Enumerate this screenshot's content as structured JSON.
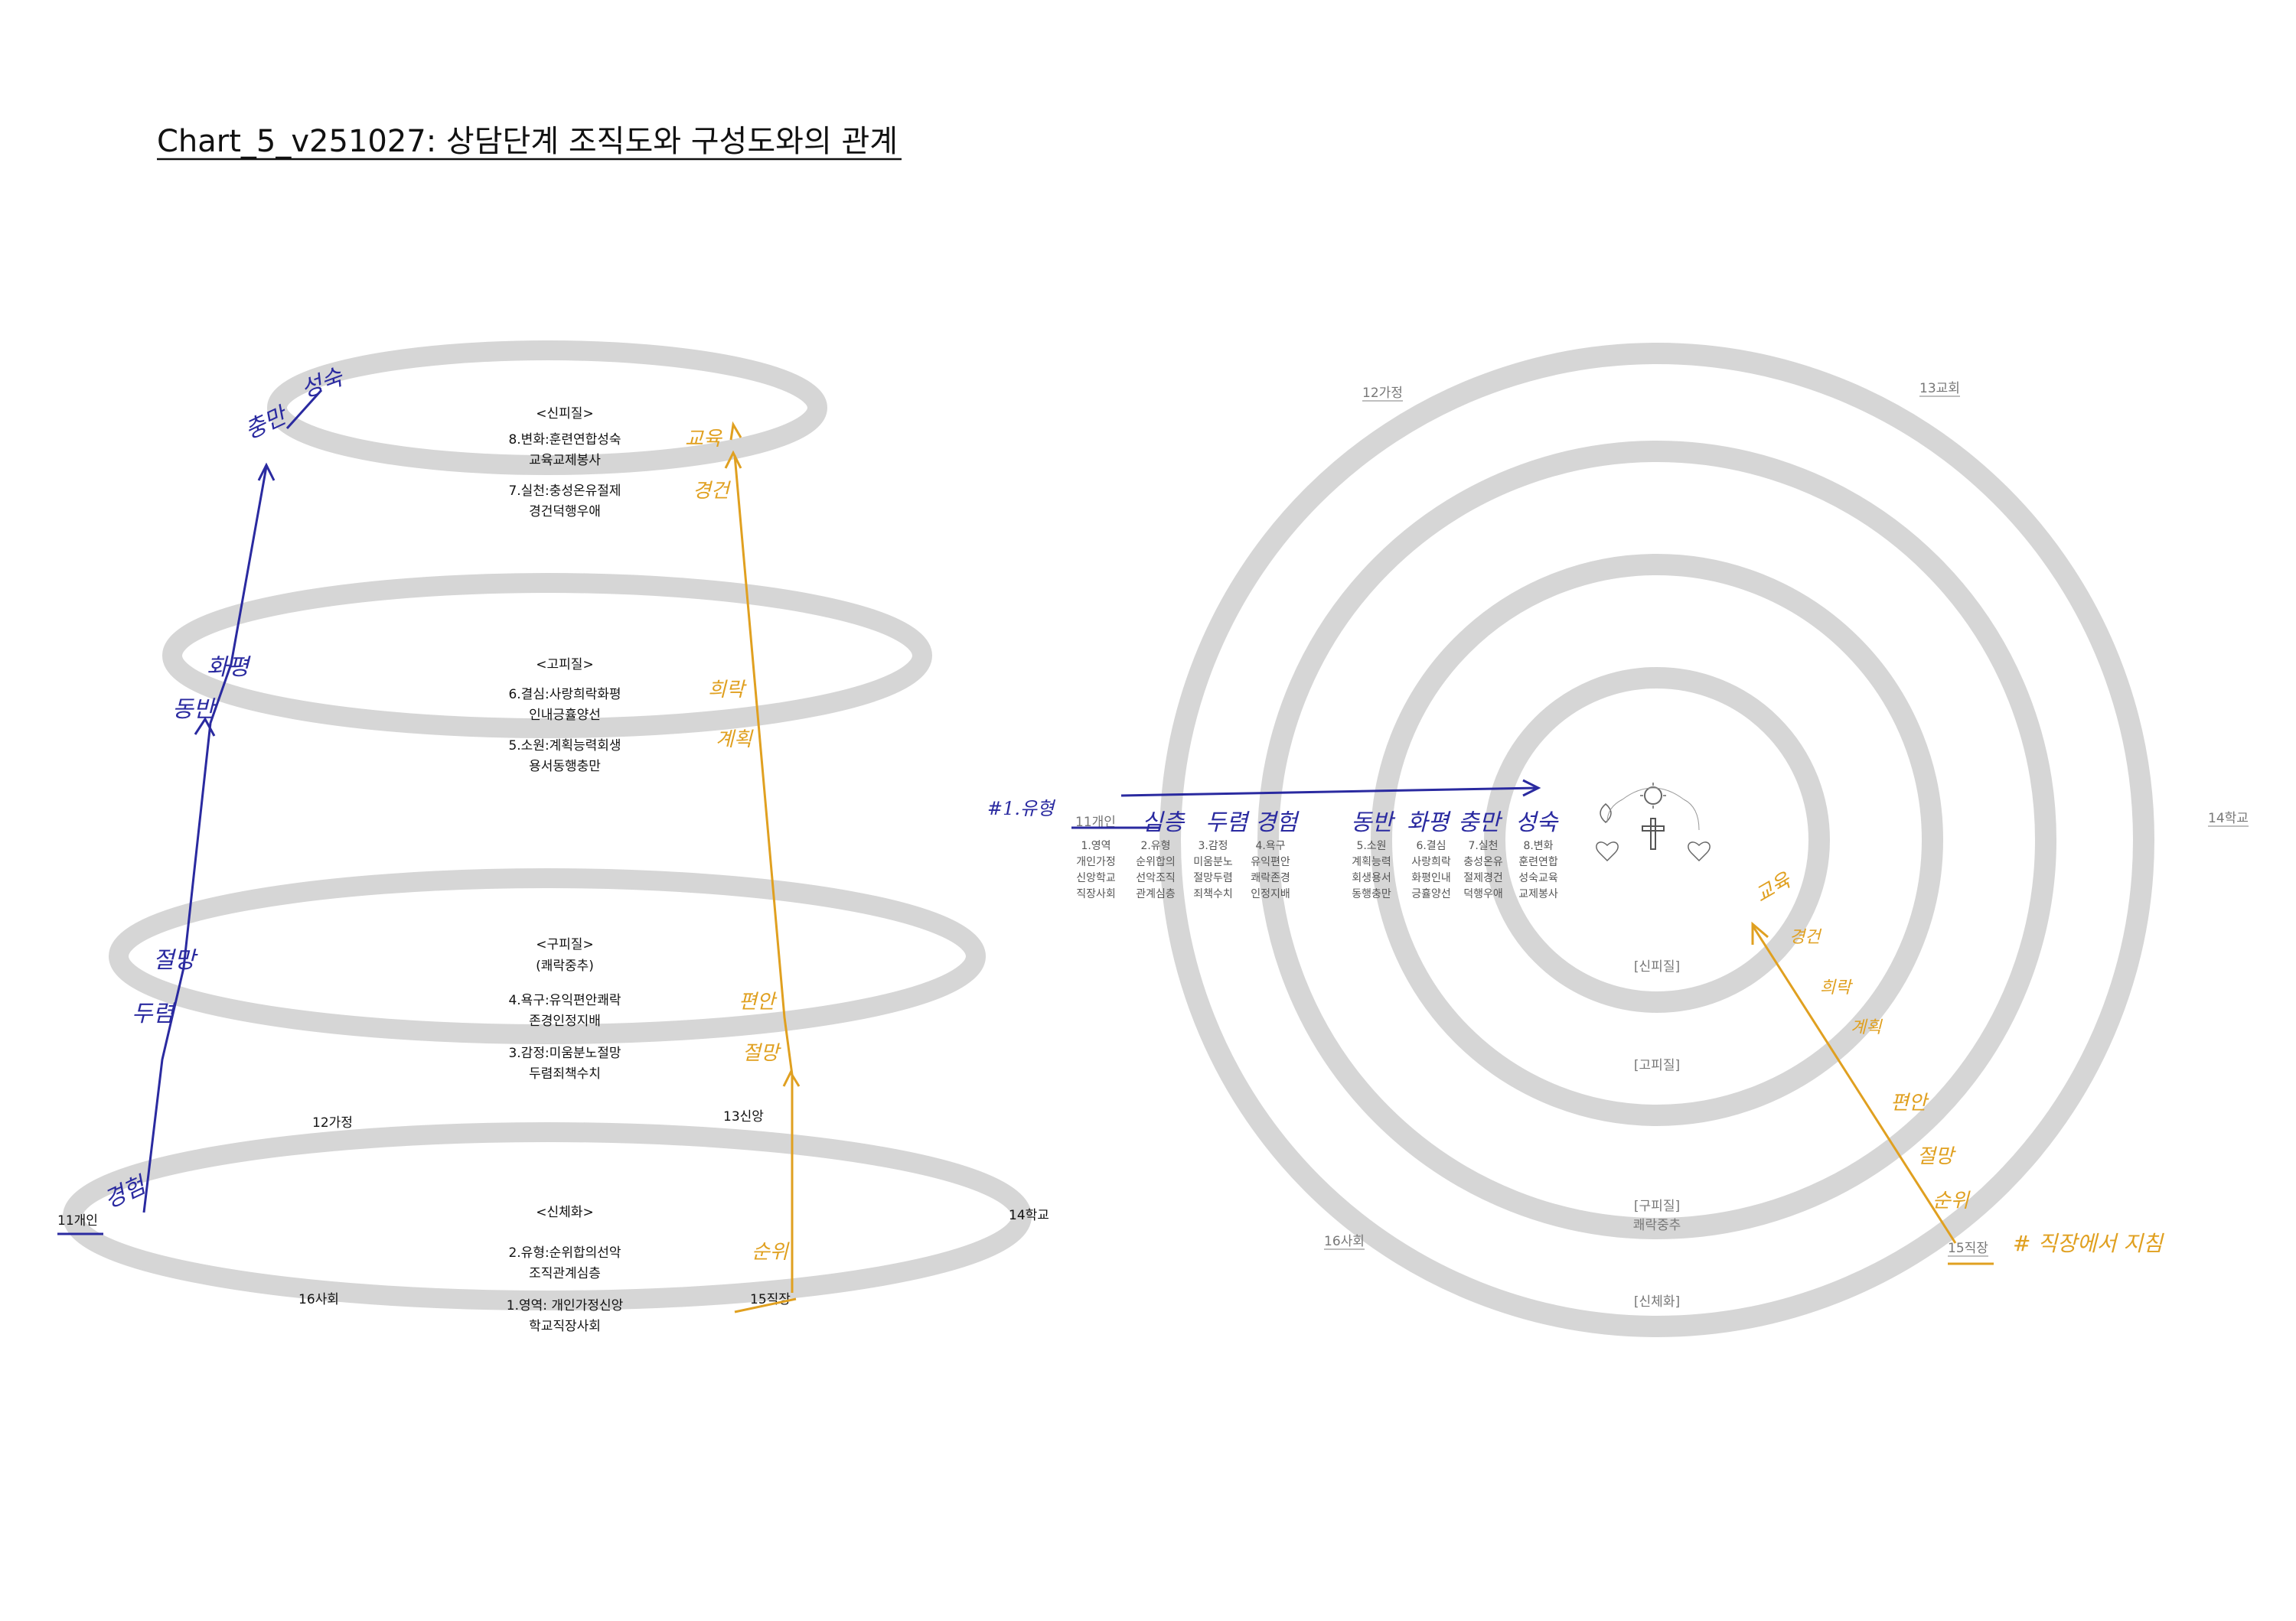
{
  "title": "Chart_5_v251027: 상담단계 조직도와 구성도와의 관계",
  "colors": {
    "ring": "#d6d6d6",
    "blue_ink": "#2a2aa0",
    "gold_ink": "#e0a020"
  },
  "left_diagram": {
    "levels": [
      {
        "header": "<신피질>",
        "lines": [
          "8.변화:훈련연합성숙",
          "교육교제봉사",
          "7.실천:충성온유절제",
          "경건덕행우애"
        ]
      },
      {
        "header": "<고피질>",
        "lines": [
          "6.결심:사랑희락화평",
          "인내긍휼양선",
          "5.소원:계획능력회생",
          "용서동행충만"
        ]
      },
      {
        "header": "<구피질>",
        "sub": "(쾌락중추)",
        "lines": [
          "4.욕구:유익편안쾌락",
          "존경인정지배",
          "3.감정:미움분노절망",
          "두렴죄책수치"
        ]
      },
      {
        "header": "<신체화>",
        "lines": [
          "2.유형:순위합의선악",
          "조직관계심층",
          "1.영역: 개인가정신앙",
          "학교직장사회"
        ]
      }
    ],
    "places": {
      "p11": "11개인",
      "p12": "12가정",
      "p13": "13신앙",
      "p14": "14학교",
      "p15": "15직장",
      "p16": "16사회"
    },
    "blue_notes": [
      "성숙",
      "충만",
      "화평",
      "동반",
      "절망",
      "두렴",
      "경험"
    ],
    "gold_notes": [
      "교육",
      "경건",
      "희락",
      "계획",
      "편안",
      "절망",
      "순위"
    ]
  },
  "right_diagram": {
    "places": {
      "p11": "11개인",
      "p12": "12가정",
      "p13": "13교회",
      "p14": "14학교",
      "p15": "15직장",
      "p16": "16사회"
    },
    "ring_labels": {
      "r1": "[신피질]",
      "r2": "[고피질]",
      "r3": "[구피질]",
      "r3_sub": "쾌락중추",
      "r4": "[신체화]"
    },
    "columns": [
      {
        "lines": [
          "1.영역",
          "개인가정",
          "신앙학교",
          "직장사회"
        ]
      },
      {
        "lines": [
          "2.유형",
          "순위합의",
          "선악조직",
          "관계심층"
        ]
      },
      {
        "lines": [
          "3.감정",
          "미움분노",
          "절망두렴",
          "죄책수치"
        ]
      },
      {
        "lines": [
          "4.욕구",
          "유익편안",
          "쾌락존경",
          "인정지배"
        ]
      },
      {
        "lines": [
          "5.소원",
          "계획능력",
          "회생용서",
          "동행충만"
        ]
      },
      {
        "lines": [
          "6.결심",
          "사랑희락",
          "화평인내",
          "긍휼양선"
        ]
      },
      {
        "lines": [
          "7.실천",
          "충성온유",
          "절제경건",
          "덕행우애"
        ]
      },
      {
        "lines": [
          "8.변화",
          "훈련연합",
          "성숙교육",
          "교제봉사"
        ]
      }
    ],
    "blue_notes": [
      "#1.유형",
      "심층",
      "두렴",
      "경험",
      "동반",
      "화평",
      "충만",
      "성숙"
    ],
    "gold_notes": [
      "교육",
      "경건",
      "희락",
      "계획",
      "편안",
      "절망",
      "순위"
    ],
    "gold_caption": "# 직장에서 지침"
  }
}
